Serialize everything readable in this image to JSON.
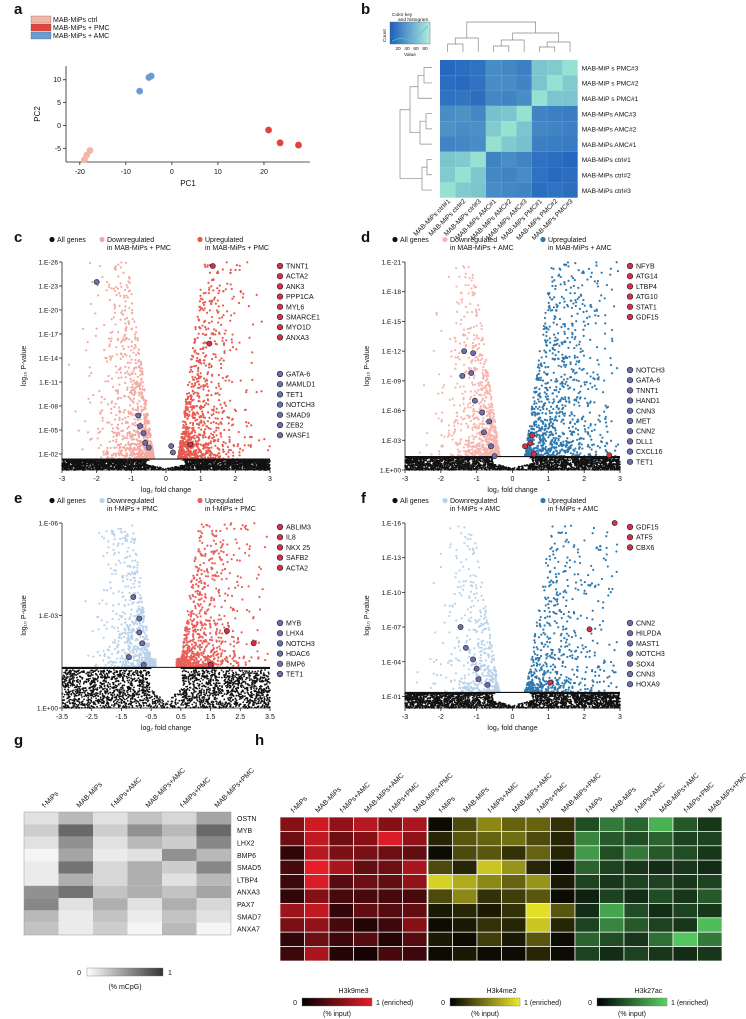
{
  "figure": {
    "panel_letters": [
      "a",
      "b",
      "c",
      "d",
      "e",
      "f",
      "g",
      "h"
    ]
  },
  "colors": {
    "ctrl": "#f4b6a4",
    "pmc": "#e4433c",
    "amc": "#6a9bd4",
    "down_pmc": "#f3a9a0",
    "up_pmc": "#e85a4f",
    "down_amc": "#f6b5ad",
    "up_amc": "#2f79ae",
    "down_f": "#b8d2ea",
    "up_f": "#e8605a",
    "highlight_red": "#d6304c",
    "highlight_blue": "#6a6fb0"
  },
  "chart_data": [
    {
      "id": "a",
      "type": "scatter",
      "title": "",
      "xlabel": "PC1",
      "ylabel": "PC2",
      "xlim": [
        -23,
        30
      ],
      "ylim": [
        -8,
        13
      ],
      "xticks": [
        "-20",
        "-10",
        "0",
        "10",
        "20"
      ],
      "xtick_values": [
        -20,
        -10,
        0,
        10,
        20
      ],
      "yticks": [
        "-5",
        "0",
        "5",
        "10"
      ],
      "ytick_values": [
        -5,
        0,
        5,
        10
      ],
      "legend": [
        "MAB-MiPs ctrl",
        "MAB-MiPs + PMC",
        "MAB-MiPs + AMC"
      ],
      "series": [
        {
          "name": "MAB-MiPs ctrl",
          "points": [
            [
              -19,
              -7.5
            ],
            [
              -18.5,
              -6.5
            ],
            [
              -17.8,
              -5.5
            ]
          ]
        },
        {
          "name": "MAB-MiPs + PMC",
          "points": [
            [
              21,
              -1
            ],
            [
              23.5,
              -3.8
            ],
            [
              27.5,
              -4.3
            ]
          ]
        },
        {
          "name": "MAB-MiPs + AMC",
          "points": [
            [
              -7,
              7.5
            ],
            [
              -5,
              10.5
            ],
            [
              -4.5,
              10.8
            ]
          ]
        }
      ]
    },
    {
      "id": "b",
      "type": "heatmap",
      "color_key_title": "Color key and histogram",
      "color_key_ylabel": "Count",
      "color_key_xlabel": "Value",
      "color_key_ticks": [
        "20",
        "40",
        "60",
        "80"
      ],
      "rows": [
        "MAB-MiP s PMC#3",
        "MAB-MiP s PMC#2",
        "MAB-MiP s PMC#1",
        "MAB-MiPs AMC#3",
        "MAB-MiPs AMC#2",
        "MAB-MiPs AMC#1",
        "MAB-MiPs ctrl#1",
        "MAB-MiPs ctrl#2",
        "MAB-MiPs ctrl#3"
      ],
      "columns": [
        "MAB-MiPs ctrl#1",
        "MAB-MiPs ctrl#2",
        "MAB-MiPs ctrl#3",
        "MAB-MiPs AMC#1",
        "MAB-MiPs AMC#2",
        "MAB-MiPs AMC#3",
        "MAB-MiPs PMC#1",
        "MAB-MiPs PMC#2",
        "MAB-MiPs PMC#3"
      ],
      "values": [
        [
          35,
          38,
          40,
          55,
          52,
          48,
          85,
          88,
          100
        ],
        [
          38,
          36,
          40,
          55,
          55,
          50,
          85,
          100,
          88
        ],
        [
          40,
          42,
          38,
          52,
          50,
          55,
          100,
          85,
          85
        ],
        [
          55,
          58,
          52,
          82,
          85,
          100,
          50,
          48,
          46
        ],
        [
          58,
          55,
          56,
          88,
          100,
          85,
          52,
          50,
          48
        ],
        [
          50,
          52,
          55,
          100,
          88,
          82,
          48,
          46,
          45
        ],
        [
          85,
          88,
          100,
          50,
          55,
          50,
          40,
          38,
          35
        ],
        [
          88,
          100,
          86,
          52,
          50,
          54,
          40,
          36,
          38
        ],
        [
          100,
          88,
          85,
          55,
          52,
          50,
          38,
          40,
          38
        ]
      ]
    },
    {
      "id": "c",
      "type": "scatter",
      "subtype": "volcano",
      "xlabel": "log₂ fold change",
      "ylabel": "log₁₀ P-value",
      "xlim": [
        -3,
        3
      ],
      "xticks": [
        "-3",
        "-2",
        "-1",
        "0",
        "1",
        "2",
        "3"
      ],
      "xtick_values": [
        -3,
        -2,
        -1,
        0,
        1,
        2,
        3
      ],
      "ymax_exp": 26,
      "yticks": [
        "1.E-26",
        "1.E-23",
        "1.E-20",
        "1.E-17",
        "1.E-14",
        "1.E-11",
        "1.E-08",
        "1.E-05",
        "1.E-02"
      ],
      "ytick_values": [
        26,
        23,
        20,
        17,
        14,
        11,
        8,
        5,
        2
      ],
      "threshold": 1.3,
      "legend": [
        "All genes",
        "Downregulated\nin MAB-MiPs + PMC",
        "Upregulated\nin MAB-MiPs + PMC"
      ],
      "spread": [
        1.6,
        1.9
      ],
      "density": [
        900,
        1000
      ],
      "highlight_red": [
        [
          1.35,
          25.5
        ],
        [
          1.25,
          15.8
        ],
        [
          0.7,
          3.2
        ]
      ],
      "highlight_blue": [
        [
          -2.0,
          23.5
        ],
        [
          -0.8,
          6.8
        ],
        [
          -0.75,
          5.5
        ],
        [
          -0.65,
          4.6
        ],
        [
          -0.6,
          3.4
        ],
        [
          -0.5,
          2.8
        ],
        [
          0.15,
          3.0
        ],
        [
          0.2,
          2.2
        ]
      ],
      "gene_labels_red": [
        "TNNT1",
        "ACTA2",
        "ANK3",
        "PPP1CA",
        "MYL6",
        "SMARCE1",
        "MYO1D",
        "ANXA3"
      ],
      "gene_labels_blue": [
        "GATA-6",
        "MAMLD1",
        "TET1",
        "NOTCH3",
        "SMAD9",
        "ZEB2",
        "WASF1"
      ]
    },
    {
      "id": "d",
      "type": "scatter",
      "subtype": "volcano",
      "xlabel": "log₂ fold change",
      "ylabel": "log₁₀ P-value",
      "xlim": [
        -3,
        3
      ],
      "xticks": [
        "-3",
        "-2",
        "-1",
        "0",
        "1",
        "2",
        "3"
      ],
      "xtick_values": [
        -3,
        -2,
        -1,
        0,
        1,
        2,
        3
      ],
      "ymax_exp": 21,
      "yticks": [
        "1.E-21",
        "1.E-18",
        "1.E-15",
        "1.E-12",
        "1.E-09",
        "1.E-06",
        "1.E-03",
        "1.E+00"
      ],
      "ytick_values": [
        21,
        18,
        15,
        12,
        9,
        6,
        3,
        0
      ],
      "threshold": 1.3,
      "legend": [
        "All genes",
        "Downregulated\nin MAB-MiPs + AMC",
        "Upregulated\nin MAB-MiPs + AMC"
      ],
      "spread": [
        1.5,
        2.7
      ],
      "density": [
        900,
        1100
      ],
      "highlight_red": [
        [
          0.55,
          3.5
        ],
        [
          0.5,
          2.7
        ],
        [
          0.35,
          2.4
        ],
        [
          0.6,
          1.6
        ],
        [
          2.7,
          1.5
        ]
      ],
      "highlight_blue": [
        [
          -1.35,
          12.0
        ],
        [
          -1.1,
          11.8
        ],
        [
          -1.4,
          9.5
        ],
        [
          -1.15,
          9.8
        ],
        [
          -1.05,
          7.0
        ],
        [
          -0.85,
          5.8
        ],
        [
          -0.65,
          4.9
        ],
        [
          -0.8,
          3.8
        ],
        [
          -0.6,
          2.4
        ],
        [
          -0.5,
          1.4
        ]
      ],
      "gene_labels_red": [
        "NFYB",
        "ATG14",
        "LTBP4",
        "ATG10",
        "STAT1",
        "GDF15"
      ],
      "gene_labels_blue": [
        "NOTCH3",
        "GATA-6",
        "TNNT1",
        "HAND1",
        "CNN3",
        "MET",
        "CNN2",
        "DLL1",
        "CXCL16",
        "TET1"
      ]
    },
    {
      "id": "e",
      "type": "scatter",
      "subtype": "volcano",
      "xlabel": "log₂ fold change",
      "ylabel": "log₁₀ P-value",
      "xlim": [
        -3.5,
        3.5
      ],
      "xticks": [
        "-3.5",
        "-2.5",
        "-1.5",
        "-0.5",
        "0.5",
        "1.5",
        "2.5",
        "3.5"
      ],
      "xtick_values": [
        -3.5,
        -2.5,
        -1.5,
        -0.5,
        0.5,
        1.5,
        2.5,
        3.5
      ],
      "ymax_exp": 6,
      "yticks": [
        "1.E-06",
        "1.E-03",
        "1.E+00"
      ],
      "ytick_values": [
        6,
        3,
        0
      ],
      "threshold": 1.3,
      "legend": [
        "All genes",
        "Downregulated\nin f-MiPs + PMC",
        "Upregulated\nin f-MiPs + PMC"
      ],
      "spread": [
        1.8,
        2.5
      ],
      "density": [
        800,
        900
      ],
      "highlight_red": [
        [
          2.05,
          2.5
        ],
        [
          2.95,
          2.1
        ],
        [
          1.5,
          1.4
        ]
      ],
      "highlight_blue": [
        [
          -1.1,
          3.6
        ],
        [
          -0.9,
          2.9
        ],
        [
          -0.9,
          2.45
        ],
        [
          -0.8,
          2.1
        ],
        [
          -1.25,
          1.65
        ],
        [
          -0.75,
          1.4
        ]
      ],
      "gene_labels_red": [
        "ABLIM3",
        "IL8",
        "NKX 25",
        "SAFB2",
        "ACTA2"
      ],
      "gene_labels_blue": [
        "MYB",
        "LHX4",
        "NOTCH3",
        "HDAC6",
        "BMP6",
        "TET1"
      ]
    },
    {
      "id": "f",
      "type": "scatter",
      "subtype": "volcano",
      "xlabel": "log₂ fold change",
      "ylabel": "log₁₀ P-value",
      "xlim": [
        -3,
        3
      ],
      "xticks": [
        "-3",
        "-2",
        "-1",
        "0",
        "1",
        "2",
        "3"
      ],
      "xtick_values": [
        -3,
        -2,
        -1,
        0,
        1,
        2,
        3
      ],
      "ymax_exp": 16,
      "yticks": [
        "1.E-16",
        "1.E-13",
        "1.E-10",
        "1.E-07",
        "1.E-04",
        "1.E-01"
      ],
      "ytick_values": [
        16,
        13,
        10,
        7,
        4,
        1
      ],
      "threshold": 1.3,
      "legend": [
        "All genes",
        "Downregulated\nin f-MiPs + AMC",
        "Upregulated\nin f-MiPs + AMC"
      ],
      "spread": [
        1.7,
        2.9
      ],
      "density": [
        500,
        650
      ],
      "highlight_red": [
        [
          2.85,
          16.0
        ],
        [
          2.15,
          6.8
        ],
        [
          1.05,
          2.2
        ]
      ],
      "highlight_blue": [
        [
          -1.45,
          7.0
        ],
        [
          -1.3,
          5.2
        ],
        [
          -1.1,
          4.2
        ],
        [
          -1.0,
          3.4
        ],
        [
          -0.95,
          2.5
        ],
        [
          -0.7,
          2.0
        ]
      ],
      "gene_labels_red": [
        "GDF15",
        "ATF5",
        "CBX6"
      ],
      "gene_labels_blue": [
        "CNN2",
        "HILPDA",
        "MAST1",
        "NOTCH3",
        "SOX4",
        "CNN3",
        "HOXA9"
      ]
    },
    {
      "id": "g",
      "type": "heatmap",
      "columns": [
        "f-MiPs",
        "MAB-MiPs",
        "f-MiPs+AMC",
        "MAB-MiPs+AMC",
        "f-MiPs+PMC",
        "MAB-MiPs+PMC"
      ],
      "rows": [
        "OSTN",
        "MYB",
        "LHX2",
        "BMP6",
        "SMAD5",
        "LTBP4",
        "ANXA3",
        "PAX7",
        "SMAD7",
        "ANXA7"
      ],
      "values": [
        [
          0.15,
          0.35,
          0.15,
          0.3,
          0.2,
          0.45
        ],
        [
          0.25,
          0.75,
          0.25,
          0.55,
          0.35,
          0.75
        ],
        [
          0.15,
          0.55,
          0.15,
          0.35,
          0.25,
          0.6
        ],
        [
          0.05,
          0.45,
          0.1,
          0.15,
          0.55,
          0.35
        ],
        [
          0.1,
          0.7,
          0.2,
          0.4,
          0.25,
          0.6
        ],
        [
          0.1,
          0.4,
          0.2,
          0.4,
          0.15,
          0.35
        ],
        [
          0.55,
          0.7,
          0.3,
          0.4,
          0.3,
          0.45
        ],
        [
          0.6,
          0.15,
          0.4,
          0.15,
          0.4,
          0.2
        ],
        [
          0.35,
          0.1,
          0.3,
          0.1,
          0.3,
          0.15
        ],
        [
          0.3,
          0.1,
          0.25,
          0.05,
          0.35,
          0.05
        ]
      ],
      "scale_min": "0",
      "scale_max": "1",
      "scale_label": "(% mCpG)"
    },
    {
      "id": "h",
      "type": "heatmap",
      "columns": [
        "f-MiPs",
        "MAB-MiPs",
        "f-MiPs+AMC",
        "MAB-MiPs+AMC",
        "f-MiPs+PMC",
        "MAB-MiPs+PMC"
      ],
      "panels": [
        {
          "title": "H3k9me3",
          "scale_min": "0",
          "scale_max": "1 (enriched)",
          "scale_label": "(% input)",
          "values": [
            [
              0.55,
              0.85,
              0.6,
              0.75,
              0.55,
              0.7
            ],
            [
              0.45,
              0.8,
              0.45,
              0.55,
              0.9,
              0.6
            ],
            [
              0.2,
              0.75,
              0.5,
              0.5,
              0.45,
              0.4
            ],
            [
              0.3,
              0.95,
              0.7,
              0.4,
              0.45,
              0.7
            ],
            [
              0.25,
              0.9,
              0.35,
              0.45,
              0.4,
              0.6
            ],
            [
              0.2,
              0.55,
              0.3,
              0.3,
              0.3,
              0.3
            ],
            [
              0.65,
              0.8,
              0.2,
              0.4,
              0.35,
              0.4
            ],
            [
              0.5,
              0.6,
              0.3,
              0.15,
              0.25,
              0.55
            ],
            [
              0.2,
              0.45,
              0.25,
              0.35,
              0.15,
              0.35
            ],
            [
              0.25,
              0.7,
              0.15,
              0.1,
              0.3,
              0.25
            ]
          ]
        },
        {
          "title": "H3k4me2",
          "scale_min": "0",
          "scale_max": "1 (enriched)",
          "scale_label": "(% input)",
          "values": [
            [
              0.05,
              0.3,
              0.55,
              0.4,
              0.4,
              0.2
            ],
            [
              0.15,
              0.35,
              0.4,
              0.45,
              0.3,
              0.15
            ],
            [
              0.05,
              0.3,
              0.35,
              0.2,
              0.4,
              0.15
            ],
            [
              0.3,
              0.15,
              0.8,
              0.6,
              0.15,
              0.05
            ],
            [
              0.85,
              0.7,
              0.55,
              0.4,
              0.6,
              0.1
            ],
            [
              0.3,
              0.55,
              0.2,
              0.25,
              0.35,
              0.05
            ],
            [
              0.1,
              0.15,
              0.1,
              0.2,
              0.9,
              0.35
            ],
            [
              0.05,
              0.1,
              0.2,
              0.15,
              0.8,
              0.15
            ],
            [
              0.1,
              0.05,
              0.25,
              0.1,
              0.35,
              0.05
            ],
            [
              0.05,
              0.1,
              0.05,
              0.05,
              0.15,
              0.05
            ]
          ]
        },
        {
          "title": "H3k27ac",
          "scale_min": "0",
          "scale_max": "1 (enriched)",
          "scale_label": "(% input)",
          "values": [
            [
              0.35,
              0.55,
              0.45,
              0.8,
              0.4,
              0.25
            ],
            [
              0.6,
              0.4,
              0.35,
              0.45,
              0.3,
              0.3
            ],
            [
              0.7,
              0.35,
              0.55,
              0.4,
              0.35,
              0.25
            ],
            [
              0.45,
              0.3,
              0.25,
              0.2,
              0.25,
              0.2
            ],
            [
              0.3,
              0.25,
              0.3,
              0.3,
              0.25,
              0.3
            ],
            [
              0.15,
              0.3,
              0.2,
              0.35,
              0.25,
              0.4
            ],
            [
              0.2,
              0.75,
              0.35,
              0.2,
              0.3,
              0.25
            ],
            [
              0.3,
              0.6,
              0.4,
              0.3,
              0.25,
              0.85
            ],
            [
              0.45,
              0.35,
              0.25,
              0.5,
              0.9,
              0.55
            ],
            [
              0.3,
              0.2,
              0.3,
              0.25,
              0.2,
              0.25
            ]
          ]
        }
      ]
    }
  ]
}
